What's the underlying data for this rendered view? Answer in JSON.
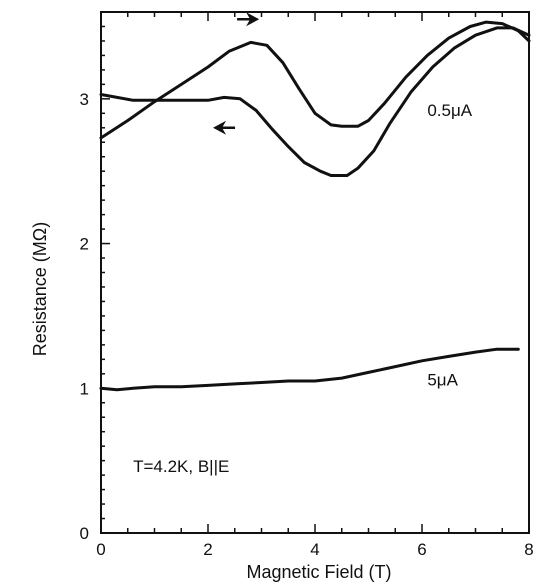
{
  "chart_data": {
    "type": "line",
    "title": "",
    "xlabel": "Magnetic Field (T)",
    "ylabel": "Resistance (MΩ)",
    "xlim": [
      0,
      8
    ],
    "ylim": [
      0,
      3.6
    ],
    "x_ticks": [
      0,
      2,
      4,
      6,
      8
    ],
    "y_ticks": [
      0,
      1,
      2,
      3
    ],
    "grid": false,
    "legend": "none",
    "series": [
      {
        "label_ref": "a1",
        "direction": "up",
        "points": [
          [
            0,
            2.73
          ],
          [
            0.5,
            2.85
          ],
          [
            1.0,
            2.98
          ],
          [
            1.5,
            3.1
          ],
          [
            2.0,
            3.22
          ],
          [
            2.4,
            3.33
          ],
          [
            2.8,
            3.39
          ],
          [
            3.1,
            3.37
          ],
          [
            3.4,
            3.25
          ],
          [
            3.7,
            3.07
          ],
          [
            4.0,
            2.9
          ],
          [
            4.3,
            2.82
          ],
          [
            4.5,
            2.81
          ],
          [
            4.8,
            2.81
          ],
          [
            5.0,
            2.85
          ],
          [
            5.3,
            2.97
          ],
          [
            5.7,
            3.15
          ],
          [
            6.1,
            3.3
          ],
          [
            6.5,
            3.42
          ],
          [
            6.9,
            3.5
          ],
          [
            7.2,
            3.53
          ],
          [
            7.5,
            3.52
          ],
          [
            7.8,
            3.47
          ],
          [
            8.0,
            3.4
          ]
        ]
      },
      {
        "label_ref": "a1",
        "direction": "down",
        "points": [
          [
            0,
            3.03
          ],
          [
            0.3,
            3.01
          ],
          [
            0.6,
            2.99
          ],
          [
            1.0,
            2.99
          ],
          [
            1.5,
            2.99
          ],
          [
            2.0,
            2.99
          ],
          [
            2.3,
            3.01
          ],
          [
            2.6,
            3.0
          ],
          [
            2.9,
            2.92
          ],
          [
            3.2,
            2.79
          ],
          [
            3.5,
            2.67
          ],
          [
            3.8,
            2.56
          ],
          [
            4.1,
            2.5
          ],
          [
            4.3,
            2.47
          ],
          [
            4.6,
            2.47
          ],
          [
            4.8,
            2.52
          ],
          [
            5.1,
            2.64
          ],
          [
            5.4,
            2.83
          ],
          [
            5.8,
            3.05
          ],
          [
            6.2,
            3.22
          ],
          [
            6.6,
            3.35
          ],
          [
            7.0,
            3.44
          ],
          [
            7.4,
            3.49
          ],
          [
            7.7,
            3.49
          ],
          [
            8.0,
            3.44
          ]
        ]
      },
      {
        "label_ref": "a2",
        "points": [
          [
            0,
            1.0
          ],
          [
            0.3,
            0.99
          ],
          [
            0.6,
            1.0
          ],
          [
            1.0,
            1.01
          ],
          [
            1.5,
            1.01
          ],
          [
            2.0,
            1.02
          ],
          [
            2.5,
            1.03
          ],
          [
            3.0,
            1.04
          ],
          [
            3.5,
            1.05
          ],
          [
            4.0,
            1.05
          ],
          [
            4.5,
            1.07
          ],
          [
            5.0,
            1.11
          ],
          [
            5.5,
            1.15
          ],
          [
            6.0,
            1.19
          ],
          [
            6.5,
            1.22
          ],
          [
            7.0,
            1.25
          ],
          [
            7.4,
            1.27
          ],
          [
            7.8,
            1.27
          ]
        ]
      }
    ],
    "annotations": [
      {
        "id": "a1",
        "text": "0.5μA",
        "x": 6.1,
        "y": 2.88
      },
      {
        "id": "a2",
        "text": "5μA",
        "x": 6.1,
        "y": 1.02
      },
      {
        "id": "a3",
        "text": "T=4.2K, B||E",
        "x": 0.6,
        "y": 0.42
      }
    ],
    "arrows": [
      {
        "direction": "right",
        "x": 2.75,
        "y": 3.55
      },
      {
        "direction": "left",
        "x": 2.3,
        "y": 2.8
      }
    ]
  }
}
